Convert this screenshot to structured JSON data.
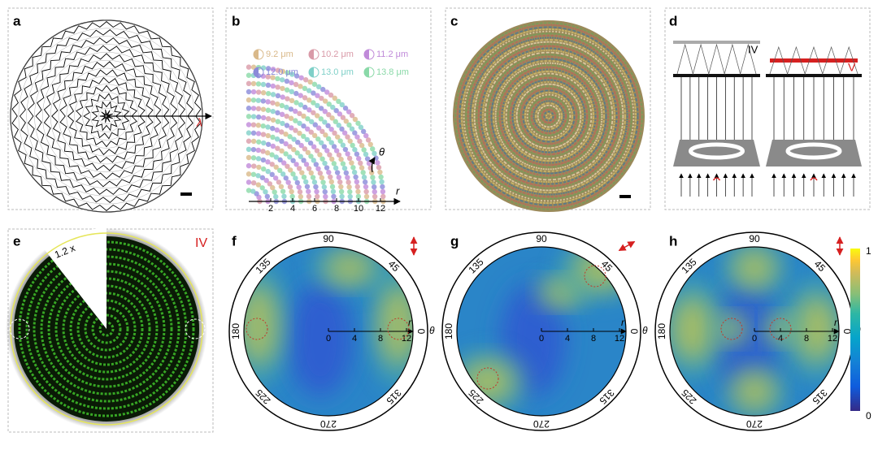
{
  "panels": {
    "a": {
      "label": "a",
      "annotation": "λ"
    },
    "b": {
      "label": "b",
      "legend": [
        "9.2 μm",
        "10.2 μm",
        "11.2 μm",
        "12.0 μm",
        "13.0 μm",
        "13.8 μm"
      ],
      "r_ticks": [
        2,
        4,
        6,
        8,
        10,
        12
      ],
      "r_label": "r",
      "theta_label": "θ"
    },
    "c": {
      "label": "c"
    },
    "d": {
      "label": "d",
      "left_tag": "IV",
      "right_tag": "V"
    },
    "e": {
      "label": "e",
      "magnification": "1.2 x",
      "tag": "IV"
    },
    "f": {
      "label": "f"
    },
    "g": {
      "label": "g"
    },
    "h": {
      "label": "h"
    }
  },
  "polar": {
    "angle_labels": [
      90,
      45,
      0,
      315,
      270,
      225,
      180,
      135
    ],
    "r_ticks": [
      0,
      4,
      8,
      12
    ],
    "r_max": 13,
    "r_label": "r",
    "theta_label": "θ"
  },
  "colorbar": {
    "max": "1",
    "min": "0"
  }
}
